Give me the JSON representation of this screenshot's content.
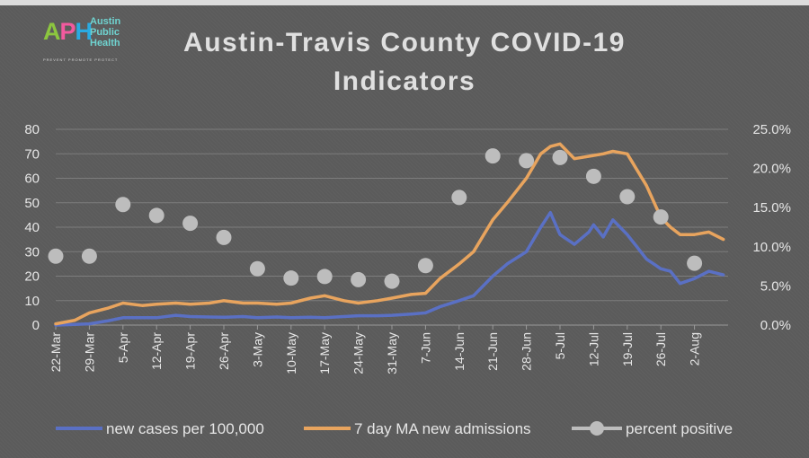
{
  "logo": {
    "mark": "APH",
    "line1": "Austin",
    "line2": "Public",
    "line3": "Health",
    "tagline": "PREVENT PROMOTE PROTECT"
  },
  "colors": {
    "background": "#5b5b5b",
    "cases": "#5a70c4",
    "admissions": "#e8a45e",
    "positive": "#bdbdbd",
    "text": "#e6e6e6"
  },
  "chart_data": {
    "type": "line",
    "title": "Austin-Travis County COVID-19 Indicators",
    "title_lines": [
      "Austin-Travis County COVID-19",
      "Indicators"
    ],
    "x_tick_labels": [
      "22-Mar",
      "29-Mar",
      "5-Apr",
      "12-Apr",
      "19-Apr",
      "26-Apr",
      "3-May",
      "10-May",
      "17-May",
      "24-May",
      "31-May",
      "7-Jun",
      "14-Jun",
      "21-Jun",
      "28-Jun",
      "5-Jul",
      "12-Jul",
      "19-Jul",
      "26-Jul",
      "2-Aug"
    ],
    "y_left": {
      "ylim": [
        0,
        80
      ],
      "ticks": [
        "0",
        "10",
        "20",
        "30",
        "40",
        "50",
        "60",
        "70",
        "80"
      ]
    },
    "y_right": {
      "ylim": [
        0,
        0.25
      ],
      "ticks": [
        "0.0%",
        "5.0%",
        "10.0%",
        "15.0%",
        "20.0%",
        "25.0%"
      ]
    },
    "grid": true,
    "legend_position": "bottom",
    "series": [
      {
        "name": "new cases per 100,000",
        "axis": "left",
        "type": "line",
        "x": [
          "22-Mar",
          "26-Mar",
          "29-Mar",
          "2-Apr",
          "5-Apr",
          "9-Apr",
          "12-Apr",
          "16-Apr",
          "19-Apr",
          "23-Apr",
          "26-Apr",
          "30-Apr",
          "3-May",
          "7-May",
          "10-May",
          "14-May",
          "17-May",
          "21-May",
          "24-May",
          "28-May",
          "31-May",
          "4-Jun",
          "7-Jun",
          "10-Jun",
          "14-Jun",
          "17-Jun",
          "21-Jun",
          "24-Jun",
          "28-Jun",
          "1-Jul",
          "3-Jul",
          "5-Jul",
          "8-Jul",
          "11-Jul",
          "12-Jul",
          "14-Jul",
          "16-Jul",
          "19-Jul",
          "23-Jul",
          "26-Jul",
          "28-Jul",
          "30-Jul",
          "2-Aug",
          "5-Aug",
          "8-Aug"
        ],
        "values": [
          0,
          0.3,
          0.5,
          1.8,
          3,
          3,
          3,
          4,
          3.5,
          3.3,
          3.2,
          3.5,
          3,
          3.3,
          3,
          3.2,
          3,
          3.5,
          3.8,
          3.8,
          4,
          4.5,
          5,
          7.5,
          10,
          12,
          20,
          25,
          30,
          40,
          46,
          37,
          33,
          38,
          41,
          36,
          43,
          37,
          27,
          23,
          22,
          17,
          19,
          22,
          20.5
        ]
      },
      {
        "name": "7 day MA new admissions",
        "axis": "left",
        "type": "line",
        "x": [
          "22-Mar",
          "26-Mar",
          "29-Mar",
          "2-Apr",
          "5-Apr",
          "9-Apr",
          "12-Apr",
          "16-Apr",
          "19-Apr",
          "23-Apr",
          "26-Apr",
          "30-Apr",
          "3-May",
          "7-May",
          "10-May",
          "14-May",
          "17-May",
          "21-May",
          "24-May",
          "28-May",
          "31-May",
          "4-Jun",
          "7-Jun",
          "10-Jun",
          "14-Jun",
          "17-Jun",
          "21-Jun",
          "24-Jun",
          "28-Jun",
          "1-Jul",
          "3-Jul",
          "5-Jul",
          "8-Jul",
          "11-Jul",
          "14-Jul",
          "16-Jul",
          "19-Jul",
          "23-Jul",
          "26-Jul",
          "28-Jul",
          "30-Jul",
          "2-Aug",
          "5-Aug",
          "8-Aug"
        ],
        "values": [
          0.5,
          2,
          5,
          7,
          9,
          8,
          8.5,
          9,
          8.5,
          9,
          10,
          9,
          9,
          8.5,
          9,
          11,
          12,
          10,
          9,
          10,
          11,
          12.5,
          13,
          19,
          25,
          30,
          43,
          50,
          60,
          70,
          73,
          74,
          68,
          69,
          70,
          71,
          70,
          57,
          44,
          40,
          37,
          37,
          38,
          35
        ]
      },
      {
        "name": "percent positive",
        "axis": "right",
        "type": "scatter",
        "x": [
          "22-Mar",
          "29-Mar",
          "5-Apr",
          "12-Apr",
          "19-Apr",
          "26-Apr",
          "3-May",
          "10-May",
          "17-May",
          "24-May",
          "31-May",
          "7-Jun",
          "14-Jun",
          "21-Jun",
          "28-Jun",
          "5-Jul",
          "12-Jul",
          "19-Jul",
          "26-Jul",
          "2-Aug"
        ],
        "values": [
          0.088,
          0.088,
          0.154,
          0.14,
          0.13,
          0.112,
          0.072,
          0.06,
          0.062,
          0.058,
          0.056,
          0.076,
          0.163,
          0.216,
          0.21,
          0.214,
          0.19,
          0.164,
          0.138,
          0.079
        ]
      }
    ]
  }
}
